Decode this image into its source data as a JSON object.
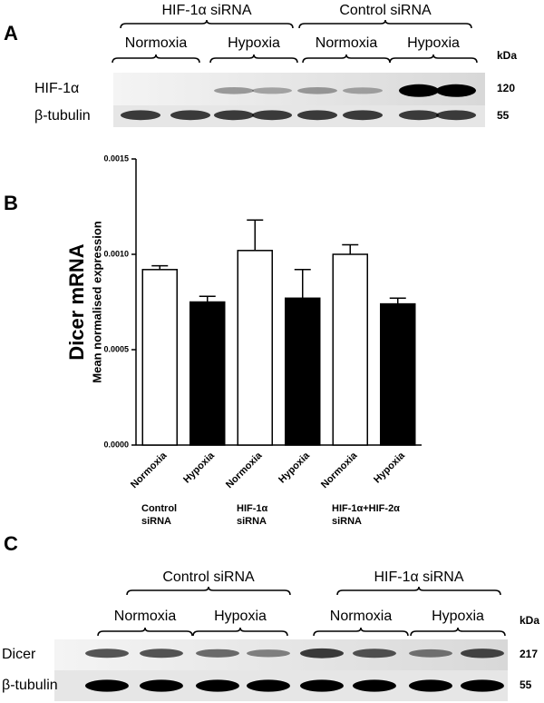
{
  "panel_a": {
    "label": "A",
    "groups": [
      {
        "name": "HIF-1α siRNA",
        "conditions": [
          "Normoxia",
          "Hypoxia"
        ]
      },
      {
        "name": "Control siRNA",
        "conditions": [
          "Normoxia",
          "Hypoxia"
        ]
      }
    ],
    "unit": "kDa",
    "rows": [
      {
        "name": "HIF-1α",
        "kda": "120"
      },
      {
        "name": "β-tubulin",
        "kda": "55"
      }
    ]
  },
  "chart_data": {
    "type": "bar",
    "panel_label": "B",
    "title": "Dicer mRNA",
    "y_label": "Mean normalised expression",
    "categories": [
      "Normoxia",
      "Hypoxia",
      "Normoxia",
      "Hypoxia",
      "Normoxia",
      "Hypoxia"
    ],
    "groups": [
      [
        "Control",
        "siRNA"
      ],
      [
        "HIF-1α",
        "siRNA"
      ],
      [
        "HIF-1α+HIF-2α",
        "siRNA"
      ]
    ],
    "values": [
      0.00092,
      0.00075,
      0.00102,
      0.00077,
      0.001,
      0.00074
    ],
    "errors": [
      2e-05,
      3e-05,
      0.00016,
      0.00015,
      5e-05,
      3e-05
    ],
    "colors": [
      "#ffffff",
      "#000000",
      "#ffffff",
      "#000000",
      "#ffffff",
      "#000000"
    ],
    "ylim": [
      0,
      0.0015
    ],
    "yticks": [
      {
        "value": 0,
        "label": "0.0000"
      },
      {
        "value": 0.0005,
        "label": "0.0005"
      },
      {
        "value": 0.001,
        "label": "0.0010"
      },
      {
        "value": 0.0015,
        "label": "0.0015"
      }
    ]
  },
  "panel_c": {
    "label": "C",
    "groups": [
      {
        "name": "Control siRNA",
        "conditions": [
          "Normoxia",
          "Hypoxia"
        ]
      },
      {
        "name": "HIF-1α siRNA",
        "conditions": [
          "Normoxia",
          "Hypoxia"
        ]
      }
    ],
    "unit": "kDa",
    "rows": [
      {
        "name": "Dicer",
        "kda": "217"
      },
      {
        "name": "β-tubulin",
        "kda": "55"
      }
    ]
  }
}
